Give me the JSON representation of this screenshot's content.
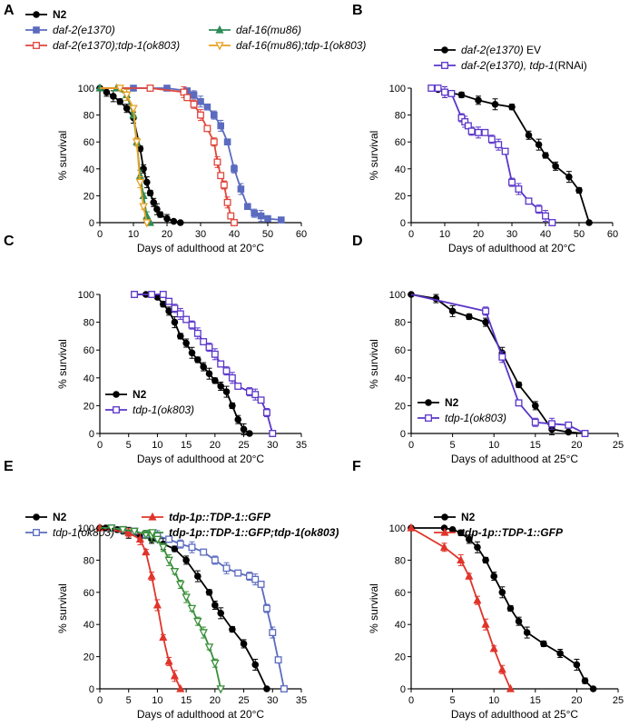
{
  "chart_data": [
    {
      "panel": "A",
      "type": "line",
      "xlabel": "Days of adulthood at 20°C",
      "ylabel": "% survival",
      "xlim": [
        0,
        60
      ],
      "ylim": [
        0,
        100
      ],
      "xticks": [
        0,
        10,
        20,
        30,
        40,
        50,
        60
      ],
      "yticks": [
        0,
        20,
        40,
        60,
        80,
        100
      ],
      "legend": "top-left",
      "series": [
        {
          "name": "N2",
          "color": "#000000",
          "marker": "circle",
          "x": [
            0,
            2,
            4,
            6,
            8,
            10,
            12,
            13,
            14,
            15,
            16,
            17,
            18,
            20,
            22,
            24
          ],
          "y": [
            100,
            97,
            94,
            90,
            85,
            78,
            55,
            40,
            30,
            22,
            15,
            10,
            6,
            3,
            1,
            0
          ]
        },
        {
          "name": "daf-2(e1370)",
          "color": "#5b6bbf",
          "marker": "square",
          "x": [
            0,
            10,
            20,
            26,
            28,
            30,
            32,
            34,
            36,
            38,
            40,
            42,
            44,
            46,
            48,
            50,
            54
          ],
          "y": [
            100,
            100,
            100,
            98,
            95,
            90,
            86,
            80,
            72,
            60,
            40,
            25,
            12,
            7,
            5,
            3,
            2
          ]
        },
        {
          "name": "daf-16(mu86)",
          "color": "#2e8b57",
          "marker": "triangle-up",
          "x": [
            0,
            5,
            8,
            10,
            11,
            12,
            13,
            14,
            15
          ],
          "y": [
            100,
            100,
            95,
            80,
            60,
            35,
            20,
            5,
            0
          ]
        },
        {
          "name": "daf-2(e1370);tdp-1(ok803)",
          "color": "#e0463c",
          "marker": "open-square",
          "x": [
            0,
            15,
            25,
            26,
            28,
            30,
            32,
            34,
            35,
            36,
            37,
            38,
            39,
            40
          ],
          "y": [
            100,
            100,
            97,
            93,
            88,
            80,
            70,
            60,
            45,
            35,
            28,
            15,
            5,
            0
          ]
        },
        {
          "name": "daf-16(mu86);tdp-1(ok803)",
          "color": "#e8a020",
          "marker": "open-triangle-down",
          "x": [
            0,
            6,
            8,
            10,
            11,
            12,
            13,
            14
          ],
          "y": [
            100,
            100,
            95,
            85,
            60,
            30,
            12,
            0
          ]
        }
      ]
    },
    {
      "panel": "B",
      "type": "line",
      "xlabel": "Days of adulthood at 20°C",
      "ylabel": "% survival",
      "xlim": [
        0,
        60
      ],
      "ylim": [
        0,
        100
      ],
      "xticks": [
        0,
        10,
        20,
        30,
        40,
        50,
        60
      ],
      "yticks": [
        0,
        20,
        40,
        60,
        80,
        100
      ],
      "legend": "top-right",
      "series": [
        {
          "name": "daf-2(e1370) EV",
          "color": "#000000",
          "marker": "circle",
          "x": [
            6,
            8,
            10,
            15,
            20,
            25,
            30,
            35,
            38,
            40,
            43,
            47,
            50,
            53
          ],
          "y": [
            100,
            99,
            97,
            95,
            91,
            88,
            86,
            65,
            58,
            50,
            42,
            34,
            24,
            0
          ]
        },
        {
          "name": "daf-2(e1370), tdp-1(RNAi)",
          "color": "#5a35c9",
          "marker": "open-square",
          "x": [
            6,
            8,
            10,
            12,
            15,
            16,
            17,
            18,
            20,
            22,
            24,
            26,
            28,
            30,
            32,
            35,
            38,
            40,
            42
          ],
          "y": [
            100,
            100,
            97,
            96,
            78,
            75,
            72,
            68,
            67,
            67,
            62,
            58,
            53,
            30,
            25,
            16,
            10,
            5,
            0
          ]
        }
      ]
    },
    {
      "panel": "C",
      "type": "line",
      "xlabel": "Days of adulthood at 20°C",
      "ylabel": "% survival",
      "xlim": [
        0,
        35
      ],
      "ylim": [
        0,
        100
      ],
      "xticks": [
        0,
        5,
        10,
        15,
        20,
        25,
        30,
        35
      ],
      "yticks": [
        0,
        20,
        40,
        60,
        80,
        100
      ],
      "legend": "bottom-left",
      "series": [
        {
          "name": "N2",
          "color": "#000000",
          "marker": "circle",
          "x": [
            6,
            8,
            10,
            11,
            12,
            13,
            14,
            15,
            16,
            17,
            18,
            19,
            20,
            21,
            22,
            23,
            24,
            25,
            26
          ],
          "y": [
            100,
            100,
            98,
            93,
            88,
            80,
            70,
            65,
            58,
            53,
            48,
            43,
            38,
            34,
            30,
            20,
            10,
            3,
            0
          ]
        },
        {
          "name": "tdp-1(ok803)",
          "color": "#5a35c9",
          "marker": "open-square",
          "x": [
            6,
            9,
            11,
            12,
            13,
            14,
            15,
            16,
            17,
            18,
            19,
            20,
            21,
            22,
            23,
            24,
            26,
            27,
            28,
            29,
            30
          ],
          "y": [
            100,
            100,
            100,
            95,
            90,
            86,
            82,
            78,
            72,
            66,
            62,
            57,
            50,
            45,
            40,
            34,
            30,
            28,
            24,
            15,
            0
          ]
        }
      ]
    },
    {
      "panel": "D",
      "type": "line",
      "xlabel": "Days of adulthood at  25°C",
      "ylabel": "% survival",
      "xlim": [
        0,
        25
      ],
      "ylim": [
        0,
        100
      ],
      "xticks": [
        0,
        5,
        10,
        15,
        20,
        25
      ],
      "yticks": [
        0,
        20,
        40,
        60,
        80,
        100
      ],
      "legend": "bottom-left",
      "series": [
        {
          "name": "N2",
          "color": "#000000",
          "marker": "circle",
          "x": [
            0,
            3,
            5,
            7,
            9,
            11,
            13,
            15,
            17,
            19,
            21
          ],
          "y": [
            100,
            97,
            88,
            84,
            80,
            58,
            35,
            20,
            3,
            1,
            0
          ]
        },
        {
          "name": "tdp-1(ok803)",
          "color": "#5a35c9",
          "marker": "open-square",
          "x": [
            0,
            9,
            11,
            13,
            15,
            17,
            19,
            21
          ],
          "y": [
            100,
            88,
            55,
            22,
            8,
            7,
            6,
            0
          ]
        }
      ]
    },
    {
      "panel": "E",
      "type": "line",
      "xlabel": "Days of adulthood at 20°C",
      "ylabel": "% survival",
      "xlim": [
        0,
        35
      ],
      "ylim": [
        0,
        100
      ],
      "xticks": [
        0,
        5,
        10,
        15,
        20,
        25,
        30,
        35
      ],
      "yticks": [
        0,
        20,
        40,
        60,
        80,
        100
      ],
      "legend": "top",
      "series": [
        {
          "name": "N2",
          "color": "#000000",
          "marker": "circle",
          "x": [
            0,
            1,
            2,
            3,
            4,
            5,
            7,
            9,
            11,
            13,
            15,
            17,
            19,
            20,
            21,
            23,
            25,
            27,
            29
          ],
          "y": [
            100,
            100,
            100,
            99,
            98,
            97,
            95,
            93,
            90,
            87,
            80,
            70,
            60,
            52,
            47,
            37,
            28,
            15,
            0
          ]
        },
        {
          "name": "tdp-1(ok803)",
          "color": "#5b6bbf",
          "marker": "open-square",
          "x": [
            0,
            2,
            4,
            6,
            8,
            10,
            12,
            14,
            16,
            18,
            20,
            22,
            24,
            26,
            27,
            28,
            29,
            30,
            31,
            32
          ],
          "y": [
            100,
            100,
            99,
            98,
            96,
            95,
            93,
            90,
            88,
            85,
            80,
            75,
            72,
            70,
            68,
            65,
            50,
            35,
            18,
            0
          ]
        },
        {
          "name": "tdp-1p::TDP-1::GFP",
          "color": "#e0342a",
          "marker": "triangle-up",
          "x": [
            0,
            5,
            7,
            8,
            9,
            10,
            11,
            12,
            13,
            14
          ],
          "y": [
            100,
            97,
            93,
            85,
            70,
            52,
            32,
            17,
            8,
            0
          ]
        },
        {
          "name": "tdp-1p::TDP-1::GFP;tdp-1(ok803)",
          "color": "#3a8f3a",
          "marker": "open-triangle-down",
          "x": [
            0,
            2,
            4,
            6,
            8,
            9,
            10,
            11,
            12,
            13,
            14,
            15,
            16,
            17,
            18,
            19,
            20,
            21
          ],
          "y": [
            100,
            100,
            99,
            98,
            96,
            95,
            93,
            88,
            80,
            73,
            65,
            57,
            50,
            42,
            35,
            26,
            16,
            0
          ]
        }
      ]
    },
    {
      "panel": "F",
      "type": "line",
      "xlabel": "Days of adulthood at 25°C",
      "ylabel": "% survival",
      "xlim": [
        0,
        25
      ],
      "ylim": [
        0,
        100
      ],
      "xticks": [
        0,
        5,
        10,
        15,
        20,
        25
      ],
      "yticks": [
        0,
        20,
        40,
        60,
        80,
        100
      ],
      "legend": "top-left",
      "series": [
        {
          "name": "N2",
          "color": "#000000",
          "marker": "circle",
          "x": [
            0,
            4,
            5,
            6,
            7,
            8,
            9,
            10,
            11,
            12,
            13,
            14,
            16,
            18,
            20,
            21,
            22
          ],
          "y": [
            100,
            100,
            99,
            97,
            93,
            88,
            80,
            70,
            60,
            50,
            42,
            35,
            28,
            22,
            15,
            5,
            0
          ]
        },
        {
          "name": "tdp-1p::TDP-1::GFP",
          "color": "#e0342a",
          "marker": "triangle-up",
          "x": [
            0,
            4,
            6,
            7,
            8,
            9,
            10,
            11,
            12
          ],
          "y": [
            100,
            88,
            80,
            70,
            55,
            40,
            25,
            12,
            0
          ]
        }
      ]
    }
  ]
}
